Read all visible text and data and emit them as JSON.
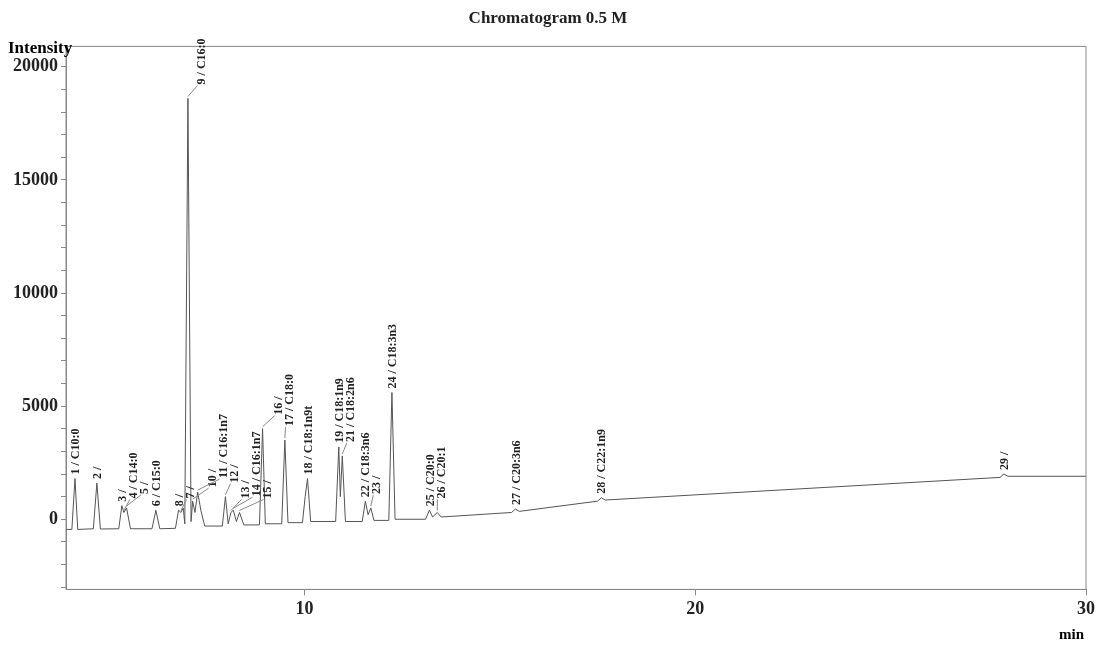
{
  "chart_data": {
    "type": "line",
    "title": "Chromatogram 0.5 M",
    "ylabel": "Intensity",
    "xlabel": "min",
    "x": [
      3.9,
      4.05,
      4.13,
      4.2,
      4.6,
      4.69,
      4.78,
      5.25,
      5.33,
      5.38,
      5.45,
      5.55,
      6.1,
      6.2,
      6.3,
      6.7,
      6.78,
      6.84,
      6.9,
      6.94,
      7.02,
      7.1,
      7.14,
      7.2,
      7.27,
      7.35,
      7.45,
      7.9,
      7.98,
      8.05,
      8.12,
      8.18,
      8.26,
      8.34,
      8.45,
      8.85,
      8.93,
      9.0,
      9.42,
      9.5,
      9.58,
      9.95,
      10.02,
      10.08,
      10.16,
      10.8,
      10.88,
      10.92,
      10.97,
      11.05,
      11.48,
      11.56,
      11.63,
      11.7,
      11.78,
      12.16,
      12.24,
      12.32,
      13.1,
      13.2,
      13.28,
      13.4,
      13.5,
      15.3,
      15.4,
      15.5,
      17.5,
      17.6,
      17.7,
      27.8,
      27.9,
      28.0,
      30
    ],
    "series": [
      {
        "color": "#555555",
        "values": [
          -450,
          -450,
          1800,
          -450,
          -420,
          1600,
          -430,
          -420,
          600,
          300,
          500,
          -420,
          -420,
          400,
          -420,
          -400,
          400,
          300,
          500,
          -200,
          18600,
          -100,
          800,
          300,
          1200,
          400,
          -300,
          -300,
          1000,
          -200,
          300,
          400,
          -100,
          300,
          -250,
          -250,
          4000,
          -200,
          -200,
          3500,
          -150,
          -150,
          1000,
          1800,
          -100,
          -100,
          3200,
          1000,
          2800,
          -100,
          -100,
          800,
          200,
          500,
          -50,
          -50,
          5600,
          0,
          0,
          400,
          100,
          300,
          100,
          300,
          450,
          350,
          800,
          950,
          850,
          1850,
          2000,
          1900,
          1900
        ]
      }
    ],
    "xlim": [
      3.9,
      30
    ],
    "xticks": [
      10,
      20,
      30
    ],
    "ylim": [
      -3100,
      20900
    ],
    "yticks": [
      {
        "value": -3000,
        "label": null
      },
      {
        "value": -2000,
        "label": null
      },
      {
        "value": -1000,
        "label": null
      },
      0,
      {
        "value": 1000,
        "label": null
      },
      {
        "value": 2000,
        "label": null
      },
      {
        "value": 3000,
        "label": null
      },
      {
        "value": 4000,
        "label": null
      },
      5000,
      {
        "value": 6000,
        "label": null
      },
      {
        "value": 7000,
        "label": null
      },
      {
        "value": 8000,
        "label": null
      },
      {
        "value": 9000,
        "label": null
      },
      10000,
      {
        "value": 11000,
        "label": null
      },
      {
        "value": 12000,
        "label": null
      },
      {
        "value": 13000,
        "label": null
      },
      {
        "value": 14000,
        "label": null
      },
      15000,
      {
        "value": 16000,
        "label": null
      },
      {
        "value": 17000,
        "label": null
      },
      {
        "value": 18000,
        "label": null
      },
      {
        "value": 19000,
        "label": null
      },
      20000
    ],
    "grid": false,
    "legend": false,
    "marker": "none",
    "line_style": "solid",
    "annotations": [
      {
        "text": "1 / C10:0",
        "x": 4.13,
        "y": 1800
      },
      {
        "text": "2 /",
        "x": 4.69,
        "y": 1600
      },
      {
        "text": "3 /",
        "x": 5.33,
        "y": 600
      },
      {
        "text": "4 / C14:0",
        "x": 5.38,
        "y": 300
      },
      {
        "text": "5 /",
        "x": 5.45,
        "y": 500
      },
      {
        "text": "6 / C15:0",
        "x": 6.2,
        "y": 400
      },
      {
        "text": "7 /",
        "x": 6.84,
        "y": 300
      },
      {
        "text": "8 /",
        "x": 6.78,
        "y": 400
      },
      {
        "text": "9 / C16:0",
        "x": 7.02,
        "y": 18600
      },
      {
        "text": "10 /",
        "x": 7.14,
        "y": 800
      },
      {
        "text": "11 / C16:1n7",
        "x": 7.27,
        "y": 1200
      },
      {
        "text": "12 /",
        "x": 7.98,
        "y": 1000
      },
      {
        "text": "13 /",
        "x": 8.12,
        "y": 300
      },
      {
        "text": "14 / C16:1n7",
        "x": 8.18,
        "y": 400
      },
      {
        "text": "15 /",
        "x": 8.34,
        "y": 300
      },
      {
        "text": "16 /",
        "x": 8.93,
        "y": 4000
      },
      {
        "text": "17 / C18:0",
        "x": 9.5,
        "y": 3500
      },
      {
        "text": "18 / C18:1n9t",
        "x": 10.08,
        "y": 1800
      },
      {
        "text": "19 / C18:1n9",
        "x": 10.88,
        "y": 3200
      },
      {
        "text": "21 / C18:2n6",
        "x": 10.97,
        "y": 2800
      },
      {
        "text": "22 / C18:3n6",
        "x": 11.56,
        "y": 800
      },
      {
        "text": "23 /",
        "x": 11.7,
        "y": 500
      },
      {
        "text": "24 / C18:3n3",
        "x": 12.24,
        "y": 5600
      },
      {
        "text": "25 / C20:0",
        "x": 13.2,
        "y": 400
      },
      {
        "text": "26 / C20:1",
        "x": 13.4,
        "y": 300
      },
      {
        "text": "27 / C20:3n6",
        "x": 15.4,
        "y": 450
      },
      {
        "text": "28 / C22:1n9",
        "x": 17.6,
        "y": 950
      },
      {
        "text": "29 /",
        "x": 27.9,
        "y": 2000
      }
    ]
  }
}
